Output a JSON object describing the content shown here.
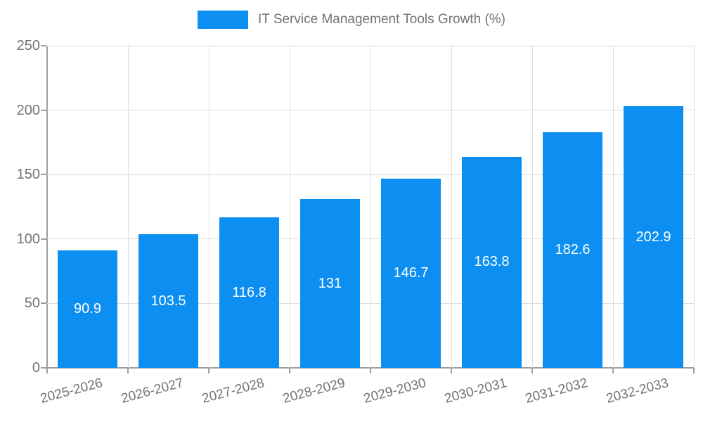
{
  "legend": {
    "label": "IT Service Management Tools Growth (%)"
  },
  "chart_data": {
    "type": "bar",
    "title": "IT Service Management Tools Growth (%)",
    "categories": [
      "2025-2026",
      "2026-2027",
      "2027-2028",
      "2028-2029",
      "2029-2030",
      "2030-2031",
      "2031-2032",
      "2032-2033"
    ],
    "values": [
      90.9,
      103.5,
      116.8,
      131,
      146.7,
      163.8,
      182.6,
      202.9
    ],
    "xlabel": "",
    "ylabel": "",
    "ylim": [
      0,
      250
    ],
    "yticks": [
      0,
      50,
      100,
      150,
      200,
      250
    ],
    "grid": true,
    "legend_position": "top-center",
    "bar_color": "#0d8ff2",
    "value_label_color": "#ffffff",
    "axis_color": "#9e9e9e",
    "grid_color": "#dddddd",
    "text_color": "#737373"
  }
}
